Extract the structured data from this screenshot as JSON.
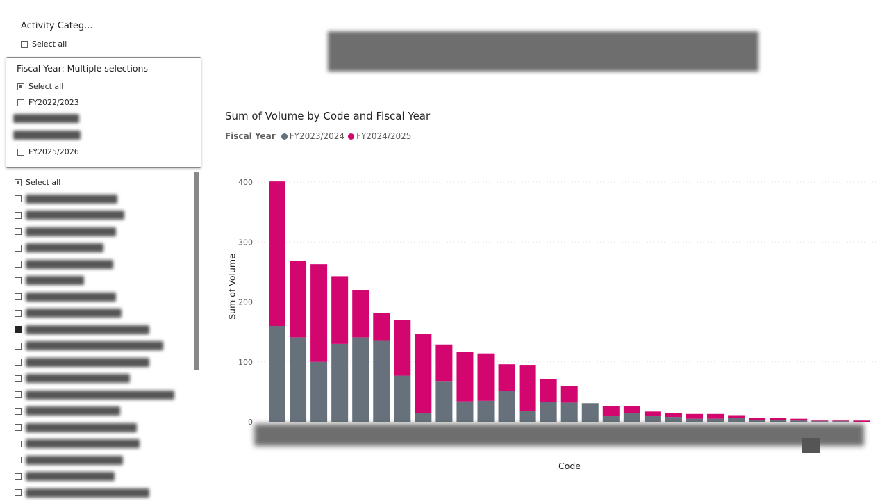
{
  "activity_slicer": {
    "title": "Activity Categ...",
    "select_all": "Select all"
  },
  "fy_slicer": {
    "title": "Fiscal Year: Multiple selections",
    "items": [
      {
        "label": "Select all",
        "state": "partial"
      },
      {
        "label": "FY2022/2023",
        "state": "unchecked"
      },
      {
        "label": "",
        "state": "redacted"
      },
      {
        "label": "",
        "state": "redacted"
      },
      {
        "label": "FY2025/2026",
        "state": "unchecked"
      }
    ]
  },
  "code_list": {
    "select_all": "Select all",
    "rows": 19,
    "checked_index": 8
  },
  "chart_data": {
    "type": "bar",
    "stacked": true,
    "title": "Sum of Volume by Code and Fiscal Year",
    "legend_title": "Fiscal Year",
    "xlabel": "Code",
    "ylabel": "Sum of Volume",
    "ylim": [
      0,
      400
    ],
    "yticks": [
      "0",
      "100",
      "200",
      "300",
      "400"
    ],
    "grid": true,
    "legend_position": "top-left",
    "series": [
      {
        "name": "FY2023/2024",
        "color": "#66717b",
        "values": [
          160,
          141,
          100,
          130,
          141,
          135,
          77,
          15,
          67,
          34,
          35,
          51,
          18,
          33,
          32,
          31,
          10,
          15,
          10,
          8,
          5,
          5,
          6,
          3,
          3,
          2,
          1,
          1,
          0
        ]
      },
      {
        "name": "FY2024/2025",
        "color": "#d3056e",
        "values": [
          241,
          128,
          163,
          113,
          79,
          47,
          93,
          132,
          62,
          82,
          79,
          45,
          77,
          38,
          28,
          0,
          16,
          11,
          7,
          7,
          8,
          8,
          5,
          3,
          3,
          3,
          1,
          1,
          2
        ]
      }
    ]
  }
}
